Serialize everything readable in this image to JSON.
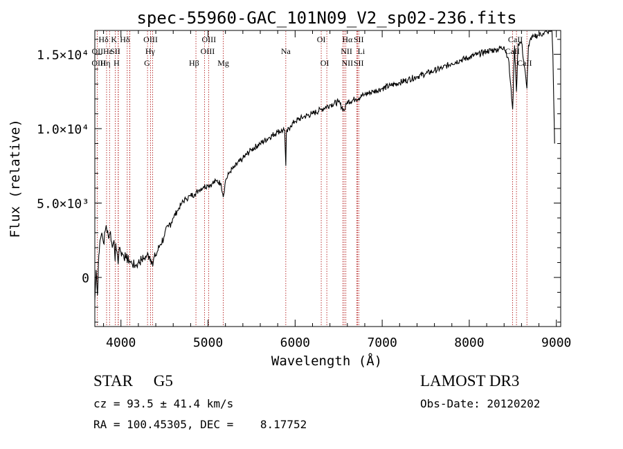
{
  "chart_data": {
    "type": "line",
    "title": "spec-55960-GAC_101N09_V2_sp02-236.fits",
    "xlabel": "Wavelength (Å)",
    "ylabel": "Flux (relative)",
    "xlim": [
      3700,
      9050
    ],
    "ylim": [
      -3300,
      16600
    ],
    "x_ticks": [
      4000,
      5000,
      6000,
      7000,
      8000,
      9000
    ],
    "x_tick_labels": [
      "4000",
      "5000",
      "6000",
      "7000",
      "8000",
      "9000"
    ],
    "y_ticks": [
      0,
      5000,
      10000,
      15000
    ],
    "y_tick_labels": [
      "0",
      "5.0×10³",
      "1.0×10⁴",
      "1.5×10⁴"
    ],
    "series": [
      {
        "name": "flux",
        "x": [
          3700,
          3715,
          3730,
          3745,
          3760,
          3780,
          3800,
          3830,
          3860,
          3880,
          3900,
          3920,
          3933,
          3940,
          3960,
          3968,
          3980,
          4000,
          4030,
          4060,
          4100,
          4130,
          4170,
          4200,
          4240,
          4270,
          4300,
          4330,
          4360,
          4400,
          4450,
          4500,
          4550,
          4600,
          4650,
          4700,
          4750,
          4800,
          4850,
          4900,
          4950,
          5000,
          5050,
          5100,
          5150,
          5175,
          5200,
          5250,
          5300,
          5400,
          5500,
          5600,
          5700,
          5800,
          5880,
          5893,
          5900,
          5950,
          6000,
          6100,
          6200,
          6300,
          6400,
          6500,
          6563,
          6600,
          6700,
          6800,
          6900,
          7000,
          7100,
          7200,
          7300,
          7400,
          7500,
          7600,
          7700,
          7800,
          7900,
          8000,
          8100,
          8200,
          8300,
          8400,
          8450,
          8498,
          8520,
          8542,
          8560,
          8600,
          8662,
          8680,
          8700,
          8750,
          8800,
          8850,
          8900,
          8950,
          8960,
          8970,
          8980
        ],
        "values": [
          -1500,
          500,
          -1200,
          1500,
          2500,
          3000,
          2300,
          3500,
          2600,
          3100,
          2000,
          2500,
          1100,
          2300,
          1500,
          900,
          2000,
          1700,
          1500,
          1300,
          1100,
          900,
          800,
          1000,
          1200,
          1300,
          1500,
          1400,
          1000,
          1500,
          2200,
          2800,
          3500,
          4000,
          4500,
          5000,
          5300,
          5500,
          5600,
          5900,
          6100,
          6200,
          6300,
          6500,
          6300,
          5400,
          6500,
          7100,
          7400,
          8000,
          8600,
          9000,
          9400,
          9800,
          9900,
          7500,
          9700,
          10200,
          10500,
          10800,
          11000,
          11300,
          11600,
          11800,
          11200,
          11800,
          12000,
          12300,
          12500,
          12700,
          12900,
          13100,
          13300,
          13500,
          13700,
          13900,
          14100,
          14400,
          14600,
          14800,
          15000,
          15200,
          15300,
          15500,
          14700,
          11300,
          15600,
          12500,
          15700,
          15800,
          12700,
          15600,
          16000,
          16200,
          16300,
          16400,
          16500,
          16600,
          15000,
          12000,
          9000
        ]
      }
    ],
    "spectral_lines": [
      {
        "label": "Hδ",
        "wavelength": 4102,
        "row": 1,
        "label_x": 3800
      },
      {
        "label": "K",
        "wavelength": 3934,
        "row": 1,
        "label_x": 3920
      },
      {
        "label": "Hδ",
        "wavelength": 4102,
        "row": 1,
        "label_x": 4045
      },
      {
        "label": "OIII",
        "wavelength": 4363,
        "row": 1,
        "label_x": 4340
      },
      {
        "label": "OIII",
        "wavelength": 4959,
        "row": 1,
        "label_x": 5010
      },
      {
        "label": "OI",
        "wavelength": 6300,
        "row": 1,
        "label_x": 6300
      },
      {
        "label": "Hα",
        "wavelength": 6563,
        "row": 1,
        "label_x": 6600
      },
      {
        "label": "SII",
        "wavelength": 6716,
        "row": 1,
        "label_x": 6730
      },
      {
        "label": "CaII",
        "wavelength": 8542,
        "row": 1,
        "label_x": 8530
      },
      {
        "label": "OII",
        "wavelength": 3727,
        "row": 2,
        "label_x": 3730
      },
      {
        "label": "Hε",
        "wavelength": 3970,
        "row": 2,
        "label_x": 3850
      },
      {
        "label": "SII",
        "wavelength": 4072,
        "row": 2,
        "label_x": 3935
      },
      {
        "label": "Hγ",
        "wavelength": 4340,
        "row": 2,
        "label_x": 4335
      },
      {
        "label": "OIII",
        "wavelength": 5007,
        "row": 2,
        "label_x": 4995
      },
      {
        "label": "Na",
        "wavelength": 5893,
        "row": 2,
        "label_x": 5893
      },
      {
        "label": "NII",
        "wavelength": 6548,
        "row": 2,
        "label_x": 6590
      },
      {
        "label": "Li",
        "wavelength": 6708,
        "row": 2,
        "label_x": 6760
      },
      {
        "label": "CaII",
        "wavelength": 8498,
        "row": 2,
        "label_x": 8495
      },
      {
        "label": "OIII",
        "wavelength": 3869,
        "row": 3,
        "label_x": 3745
      },
      {
        "label": "Hη",
        "wavelength": 3835,
        "row": 3,
        "label_x": 3820
      },
      {
        "label": "H",
        "wavelength": 3968,
        "row": 3,
        "label_x": 3950
      },
      {
        "label": "G",
        "wavelength": 4305,
        "row": 3,
        "label_x": 4300
      },
      {
        "label": "Hβ",
        "wavelength": 4861,
        "row": 3,
        "label_x": 4840
      },
      {
        "label": "Mg",
        "wavelength": 5175,
        "row": 3,
        "label_x": 5175
      },
      {
        "label": "OI",
        "wavelength": 6364,
        "row": 3,
        "label_x": 6340
      },
      {
        "label": "NII",
        "wavelength": 6583,
        "row": 3,
        "label_x": 6600
      },
      {
        "label": "SII",
        "wavelength": 6731,
        "row": 3,
        "label_x": 6730
      },
      {
        "label": "CaII",
        "wavelength": 8662,
        "row": 3,
        "label_x": 8635
      }
    ],
    "line_color": "#000000",
    "marker_color": "#aa0000"
  },
  "info": {
    "class_label": "STAR",
    "subclass_label": "G5",
    "survey": "LAMOST DR3",
    "cz": "cz = 93.5 ± 41.4 km/s",
    "obs_date": "Obs-Date: 20120202",
    "coords": "RA = 100.45305, DEC =    8.17752"
  }
}
